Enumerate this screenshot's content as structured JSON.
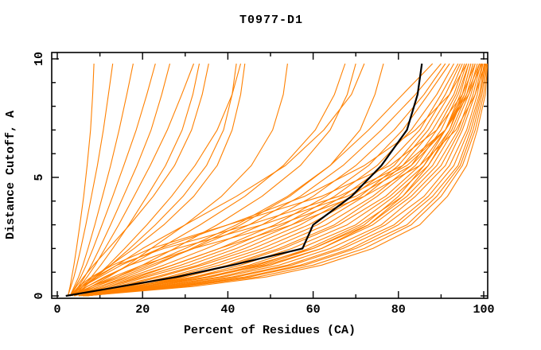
{
  "window": {
    "background": "#ffffff"
  },
  "colors": {
    "model_line": "#ff8000",
    "highlight_line": "#000000",
    "axis": "#000000",
    "background": "#ffffff"
  },
  "chart_data": {
    "type": "line",
    "title": "T0977-D1",
    "xlabel": "Percent of Residues (CA)",
    "ylabel": "Distance Cutoff, A",
    "xlim": [
      0,
      100
    ],
    "ylim": [
      0,
      10
    ],
    "x_major_ticks": [
      0,
      20,
      40,
      60,
      80,
      100
    ],
    "x_minor_ticks": [
      10,
      30,
      50,
      70,
      90
    ],
    "y_major_ticks": [
      0,
      5,
      10
    ],
    "y_minor_ticks": [
      1,
      2,
      3,
      4,
      6,
      7,
      8,
      9
    ],
    "grid": false,
    "legend": "none",
    "x_is": "percent_of_residues",
    "y_is": "distance_cutoff_angstrom",
    "cutoffs": [
      0,
      0.4,
      0.8,
      1.3,
      2,
      3,
      4.2,
      5.5,
      7,
      8.5,
      9.8
    ],
    "series": [
      {
        "name": "model-01",
        "role": "model",
        "percents": [
          2.5,
          3.0,
          3.4,
          3.9,
          4.5,
          5.3,
          6.2,
          7.0,
          7.8,
          8.3,
          8.6
        ]
      },
      {
        "name": "model-02",
        "role": "model",
        "percents": [
          2.5,
          3.2,
          3.9,
          4.6,
          5.5,
          6.7,
          8.0,
          9.4,
          10.8,
          12.0,
          13.0
        ]
      },
      {
        "name": "model-03",
        "role": "model",
        "percents": [
          3.0,
          4.0,
          5.0,
          6.0,
          7.2,
          8.8,
          10.6,
          12.5,
          14.5,
          16.3,
          17.8
        ]
      },
      {
        "name": "model-04",
        "role": "model",
        "percents": [
          3.0,
          4.3,
          5.5,
          6.8,
          8.4,
          10.5,
          13.0,
          15.6,
          18.5,
          21.0,
          23.0
        ]
      },
      {
        "name": "model-05",
        "role": "model",
        "percents": [
          3.5,
          5.0,
          6.4,
          8.0,
          9.9,
          12.5,
          15.5,
          18.7,
          22.0,
          24.5,
          26.4
        ]
      },
      {
        "name": "model-06",
        "role": "model",
        "percents": [
          3.5,
          5.3,
          7.0,
          8.9,
          11.2,
          14.4,
          18.0,
          21.8,
          25.8,
          29.2,
          32.0
        ]
      },
      {
        "name": "model-07",
        "role": "model",
        "percents": [
          4.0,
          6.0,
          8.0,
          10.2,
          13.0,
          16.8,
          21.0,
          25.4,
          29.3,
          31.8,
          33.3
        ]
      },
      {
        "name": "model-08",
        "role": "model",
        "percents": [
          3.0,
          4.5,
          6.2,
          8.5,
          12.0,
          17.0,
          22.5,
          27.5,
          31.5,
          34.0,
          35.5
        ]
      },
      {
        "name": "model-09",
        "role": "model",
        "percents": [
          4.0,
          6.5,
          9.0,
          12.0,
          15.8,
          21.0,
          26.8,
          32.3,
          37.5,
          41.0,
          43.0
        ]
      },
      {
        "name": "model-10",
        "role": "model",
        "percents": [
          3,
          6,
          9,
          12.5,
          17,
          23,
          29.5,
          35,
          39,
          41,
          42
        ]
      },
      {
        "name": "model-11",
        "role": "model",
        "percents": [
          3,
          5.5,
          8.5,
          12.5,
          18,
          25,
          32,
          37.5,
          41,
          43,
          44
        ]
      },
      {
        "name": "model-12",
        "role": "model",
        "percents": [
          4,
          8,
          12,
          16.5,
          22,
          30,
          38.5,
          45.5,
          50.5,
          53,
          54
        ]
      },
      {
        "name": "model-13",
        "role": "model",
        "percents": [
          3,
          7,
          11.5,
          17,
          24,
          33.5,
          44,
          53,
          60.5,
          65,
          67.5
        ]
      },
      {
        "name": "model-14",
        "role": "model",
        "percents": [
          4,
          9,
          14,
          20,
          27.5,
          37.5,
          48,
          57,
          64,
          68,
          70
        ]
      },
      {
        "name": "model-15",
        "role": "model",
        "percents": [
          3,
          6,
          9.5,
          14,
          20,
          30,
          42,
          53.5,
          62.5,
          69,
          72
        ]
      },
      {
        "name": "model-16",
        "role": "model",
        "percents": [
          4,
          10,
          16,
          23,
          31.5,
          43,
          54.5,
          64,
          71,
          74.5,
          76.5
        ]
      },
      {
        "name": "model-17",
        "role": "model",
        "percents": [
          3,
          8,
          14,
          21,
          30,
          42,
          54,
          64,
          73,
          81,
          88
        ]
      },
      {
        "name": "model-18",
        "role": "model",
        "percents": [
          3,
          9,
          15,
          22,
          32,
          45,
          57,
          67,
          76,
          84,
          90
        ]
      },
      {
        "name": "model-19",
        "role": "model",
        "percents": [
          4,
          10,
          17,
          25,
          35,
          48,
          60,
          70,
          79,
          86,
          91
        ]
      },
      {
        "name": "model-20",
        "role": "model",
        "percents": [
          4,
          11,
          18,
          27,
          38,
          51,
          63,
          73,
          81,
          87,
          92
        ]
      },
      {
        "name": "model-21",
        "role": "model",
        "percents": [
          4,
          12,
          20,
          29,
          40,
          53,
          65,
          75,
          83,
          89,
          93
        ]
      },
      {
        "name": "model-22",
        "role": "model",
        "percents": [
          5,
          13,
          21,
          31,
          42,
          55,
          67,
          77,
          85,
          90,
          94
        ]
      },
      {
        "name": "model-23",
        "role": "model",
        "percents": [
          5,
          14,
          23,
          33,
          44,
          57,
          69,
          79,
          86,
          91,
          94.5
        ]
      },
      {
        "name": "model-24",
        "role": "model",
        "percents": [
          5,
          15,
          24,
          34,
          46,
          59,
          71,
          80,
          87,
          92,
          95
        ]
      },
      {
        "name": "model-25",
        "role": "model",
        "percents": [
          5,
          16,
          26,
          36,
          48,
          61,
          72,
          81,
          88,
          93,
          95.5
        ]
      },
      {
        "name": "model-26",
        "role": "model",
        "percents": [
          6,
          17,
          27,
          38,
          50,
          63,
          74,
          83,
          89,
          93.5,
          96
        ]
      },
      {
        "name": "model-27",
        "role": "model",
        "percents": [
          6,
          18,
          29,
          40,
          52,
          65,
          75,
          84,
          90,
          94,
          96.5
        ]
      },
      {
        "name": "model-28",
        "role": "model",
        "percents": [
          6,
          19,
          30,
          41,
          53,
          66,
          77,
          85,
          91,
          95,
          97
        ]
      },
      {
        "name": "model-29",
        "role": "model",
        "percents": [
          6,
          20,
          32,
          43,
          55,
          68,
          78,
          86,
          92,
          95.5,
          97.5
        ]
      },
      {
        "name": "model-30",
        "role": "model",
        "percents": [
          7,
          21,
          33,
          45,
          57,
          70,
          79,
          87,
          92.5,
          96,
          98
        ]
      },
      {
        "name": "model-31",
        "role": "model",
        "percents": [
          7,
          22,
          35,
          47,
          59,
          71,
          81,
          88,
          93,
          96.5,
          98.5
        ]
      },
      {
        "name": "model-32",
        "role": "model",
        "percents": [
          7,
          23,
          36,
          48,
          60,
          73,
          82,
          89,
          94,
          97,
          99
        ]
      },
      {
        "name": "model-33",
        "role": "model",
        "percents": [
          6,
          24,
          38,
          50,
          62,
          74,
          83,
          90,
          94.5,
          97.5,
          99.3
        ]
      },
      {
        "name": "model-34",
        "role": "model",
        "percents": [
          6,
          25,
          39,
          52,
          64,
          76,
          84,
          91,
          95,
          98,
          99.6
        ]
      },
      {
        "name": "model-35",
        "role": "model",
        "percents": [
          6,
          26,
          41,
          54,
          66,
          77,
          86,
          92,
          96,
          98.5,
          99.8
        ]
      },
      {
        "name": "model-36",
        "role": "model",
        "percents": [
          6.5,
          27,
          42,
          55,
          67,
          79,
          87,
          93,
          96.5,
          99,
          100.1
        ]
      },
      {
        "name": "model-37",
        "role": "model",
        "percents": [
          6.5,
          28,
          44,
          57,
          69,
          80,
          88,
          94,
          97,
          99.3,
          100.3
        ]
      },
      {
        "name": "model-38",
        "role": "model",
        "percents": [
          6.5,
          29,
          45,
          58,
          70,
          82,
          89,
          94.5,
          97.5,
          99.6,
          100.5
        ]
      },
      {
        "name": "model-39",
        "role": "model",
        "percents": [
          6.5,
          30,
          47,
          60,
          72,
          83,
          90,
          95,
          98,
          100,
          100.7
        ]
      },
      {
        "name": "model-40",
        "role": "model",
        "percents": [
          6.5,
          32,
          49,
          62,
          74,
          85,
          91.5,
          96,
          98.5,
          100.4,
          100.9
        ]
      },
      {
        "name": "model-41",
        "role": "model",
        "percents": [
          3,
          6,
          10,
          15,
          24,
          40,
          58,
          72,
          84,
          92,
          96
        ]
      },
      {
        "name": "model-42",
        "role": "model",
        "percents": [
          3,
          5,
          8,
          13,
          22,
          40,
          62,
          78,
          89,
          95,
          98
        ]
      },
      {
        "name": "model-43",
        "role": "model",
        "percents": [
          4,
          7,
          11,
          17,
          28,
          48,
          68,
          82,
          91,
          96,
          99
        ]
      },
      {
        "name": "model-44",
        "role": "model",
        "percents": [
          3,
          6,
          9,
          14,
          25,
          45,
          66,
          81,
          91,
          96.5,
          99.5
        ]
      },
      {
        "name": "model-45",
        "role": "model",
        "percents": [
          4,
          8,
          13,
          20,
          32,
          52,
          70,
          83,
          91,
          95.5,
          97.5
        ]
      },
      {
        "name": "model-46",
        "role": "model",
        "percents": [
          5,
          12,
          19,
          27,
          38,
          55,
          72,
          85,
          93.5,
          98,
          100.4
        ]
      },
      {
        "name": "model-47",
        "role": "model",
        "percents": [
          5,
          18,
          32,
          46,
          60,
          72,
          80,
          86,
          91,
          94.5,
          96.5
        ]
      },
      {
        "name": "model-48",
        "role": "model",
        "percents": [
          5.5,
          20,
          35,
          49,
          62,
          73,
          81,
          87,
          92,
          95,
          97
        ]
      },
      {
        "name": "highlighted-model",
        "role": "highlight",
        "percents": [
          2,
          15,
          28,
          41,
          57.5,
          60,
          69,
          76,
          82,
          84.5,
          85.5
        ]
      }
    ]
  }
}
